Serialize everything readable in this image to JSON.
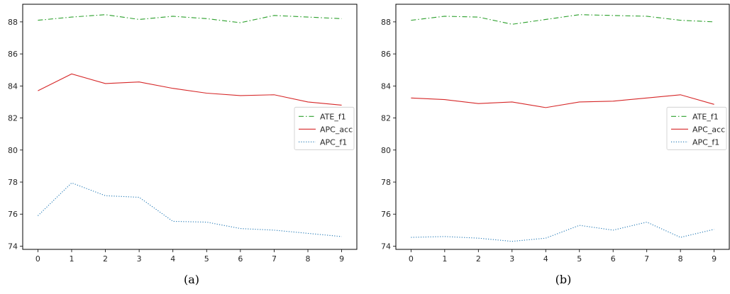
{
  "chart_data": [
    {
      "type": "line",
      "caption": "(a)",
      "x": [
        0,
        1,
        2,
        3,
        4,
        5,
        6,
        7,
        8,
        9
      ],
      "xticks": [
        0,
        1,
        2,
        3,
        4,
        5,
        6,
        7,
        8,
        9
      ],
      "yticks": [
        74,
        76,
        78,
        80,
        82,
        84,
        86,
        88
      ],
      "xlim": [
        -0.45,
        9.45
      ],
      "ylim": [
        73.8,
        89.1
      ],
      "grid": false,
      "legend_position": "center-right",
      "series": [
        {
          "name": "ATE_f1",
          "color": "#2ca02c",
          "style": "dashdot",
          "values": [
            88.1,
            88.3,
            88.45,
            88.15,
            88.35,
            88.2,
            87.95,
            88.4,
            88.3,
            88.2
          ]
        },
        {
          "name": "APC_acc",
          "color": "#d62728",
          "style": "solid",
          "values": [
            83.7,
            84.75,
            84.15,
            84.25,
            83.85,
            83.55,
            83.4,
            83.45,
            83.0,
            82.8
          ]
        },
        {
          "name": "APC_f1",
          "color": "#1f77b4",
          "style": "dotted",
          "values": [
            75.9,
            77.95,
            77.15,
            77.05,
            75.55,
            75.5,
            75.1,
            75.0,
            74.8,
            74.6
          ]
        }
      ]
    },
    {
      "type": "line",
      "caption": "(b)",
      "x": [
        0,
        1,
        2,
        3,
        4,
        5,
        6,
        7,
        8,
        9
      ],
      "xticks": [
        0,
        1,
        2,
        3,
        4,
        5,
        6,
        7,
        8,
        9
      ],
      "yticks": [
        74,
        76,
        78,
        80,
        82,
        84,
        86,
        88
      ],
      "xlim": [
        -0.45,
        9.45
      ],
      "ylim": [
        73.8,
        89.1
      ],
      "grid": false,
      "legend_position": "center-right",
      "series": [
        {
          "name": "ATE_f1",
          "color": "#2ca02c",
          "style": "dashdot",
          "values": [
            88.1,
            88.35,
            88.3,
            87.85,
            88.15,
            88.45,
            88.4,
            88.35,
            88.1,
            88.0
          ]
        },
        {
          "name": "APC_acc",
          "color": "#d62728",
          "style": "solid",
          "values": [
            83.25,
            83.15,
            82.9,
            83.0,
            82.65,
            83.0,
            83.05,
            83.25,
            83.45,
            82.85
          ]
        },
        {
          "name": "APC_f1",
          "color": "#1f77b4",
          "style": "dotted",
          "values": [
            74.55,
            74.6,
            74.5,
            74.3,
            74.5,
            75.3,
            75.0,
            75.5,
            74.55,
            75.05
          ]
        }
      ]
    }
  ]
}
